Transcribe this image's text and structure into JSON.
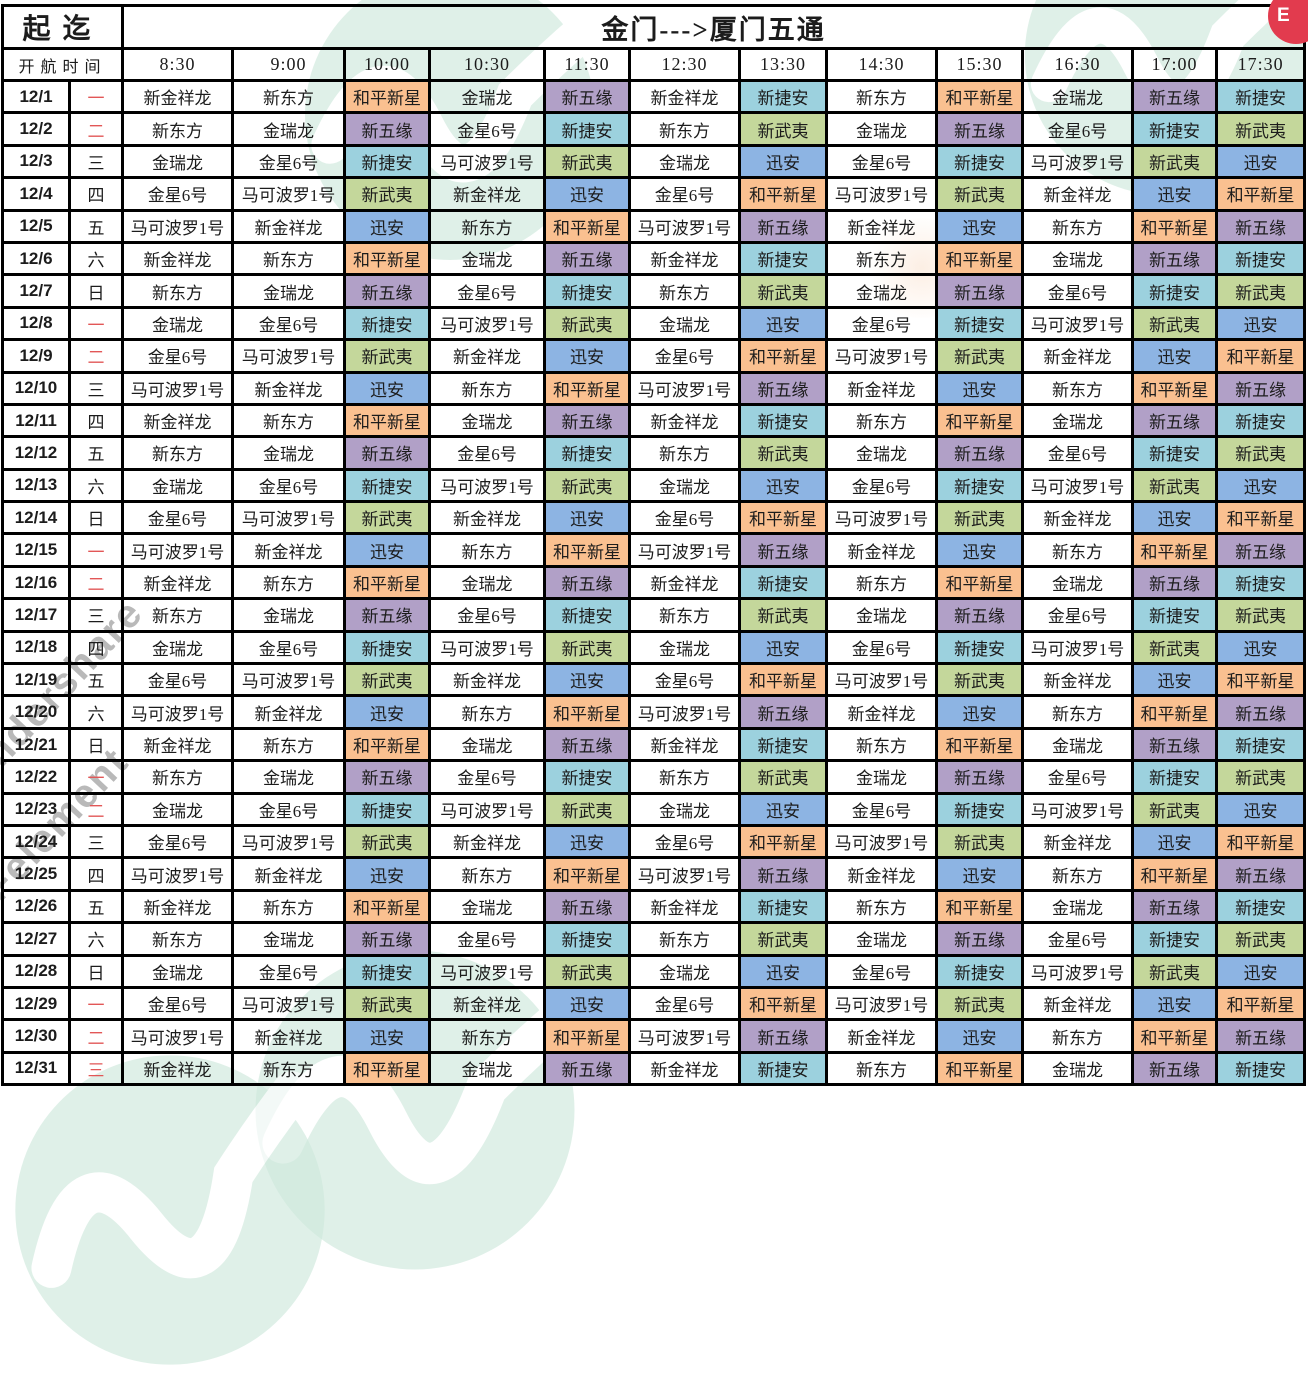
{
  "title": "金门--->厦门五通",
  "header": {
    "origin_label": "起迄",
    "departure_time_label": "开航时间"
  },
  "times": [
    "8:30",
    "9:00",
    "10:00",
    "10:30",
    "11:30",
    "12:30",
    "13:30",
    "14:30",
    "15:30",
    "16:30",
    "17:00",
    "17:30"
  ],
  "ship_colors": {
    "和平新星": "#FAC090",
    "新五缘": "#B1A0C7",
    "新捷安": "#9CD1DE",
    "新武夷": "#C4D79B",
    "迅安": "#8DB4E3"
  },
  "weekday_red_color": "#e25757",
  "rows": [
    {
      "date": "12/1",
      "day": "一",
      "day_red": true,
      "ships": [
        "新金祥龙",
        "新东方",
        "和平新星",
        "金瑞龙",
        "新五缘",
        "新金祥龙",
        "新捷安",
        "新东方",
        "和平新星",
        "金瑞龙",
        "新五缘",
        "新捷安"
      ]
    },
    {
      "date": "12/2",
      "day": "二",
      "day_red": true,
      "ships": [
        "新东方",
        "金瑞龙",
        "新五缘",
        "金星6号",
        "新捷安",
        "新东方",
        "新武夷",
        "金瑞龙",
        "新五缘",
        "金星6号",
        "新捷安",
        "新武夷"
      ]
    },
    {
      "date": "12/3",
      "day": "三",
      "day_red": false,
      "ships": [
        "金瑞龙",
        "金星6号",
        "新捷安",
        "马可波罗1号",
        "新武夷",
        "金瑞龙",
        "迅安",
        "金星6号",
        "新捷安",
        "马可波罗1号",
        "新武夷",
        "迅安"
      ]
    },
    {
      "date": "12/4",
      "day": "四",
      "day_red": false,
      "ships": [
        "金星6号",
        "马可波罗1号",
        "新武夷",
        "新金祥龙",
        "迅安",
        "金星6号",
        "和平新星",
        "马可波罗1号",
        "新武夷",
        "新金祥龙",
        "迅安",
        "和平新星"
      ]
    },
    {
      "date": "12/5",
      "day": "五",
      "day_red": false,
      "ships": [
        "马可波罗1号",
        "新金祥龙",
        "迅安",
        "新东方",
        "和平新星",
        "马可波罗1号",
        "新五缘",
        "新金祥龙",
        "迅安",
        "新东方",
        "和平新星",
        "新五缘"
      ]
    },
    {
      "date": "12/6",
      "day": "六",
      "day_red": false,
      "ships": [
        "新金祥龙",
        "新东方",
        "和平新星",
        "金瑞龙",
        "新五缘",
        "新金祥龙",
        "新捷安",
        "新东方",
        "和平新星",
        "金瑞龙",
        "新五缘",
        "新捷安"
      ]
    },
    {
      "date": "12/7",
      "day": "日",
      "day_red": false,
      "ships": [
        "新东方",
        "金瑞龙",
        "新五缘",
        "金星6号",
        "新捷安",
        "新东方",
        "新武夷",
        "金瑞龙",
        "新五缘",
        "金星6号",
        "新捷安",
        "新武夷"
      ]
    },
    {
      "date": "12/8",
      "day": "一",
      "day_red": true,
      "ships": [
        "金瑞龙",
        "金星6号",
        "新捷安",
        "马可波罗1号",
        "新武夷",
        "金瑞龙",
        "迅安",
        "金星6号",
        "新捷安",
        "马可波罗1号",
        "新武夷",
        "迅安"
      ]
    },
    {
      "date": "12/9",
      "day": "二",
      "day_red": true,
      "ships": [
        "金星6号",
        "马可波罗1号",
        "新武夷",
        "新金祥龙",
        "迅安",
        "金星6号",
        "和平新星",
        "马可波罗1号",
        "新武夷",
        "新金祥龙",
        "迅安",
        "和平新星"
      ]
    },
    {
      "date": "12/10",
      "day": "三",
      "day_red": false,
      "ships": [
        "马可波罗1号",
        "新金祥龙",
        "迅安",
        "新东方",
        "和平新星",
        "马可波罗1号",
        "新五缘",
        "新金祥龙",
        "迅安",
        "新东方",
        "和平新星",
        "新五缘"
      ]
    },
    {
      "date": "12/11",
      "day": "四",
      "day_red": false,
      "ships": [
        "新金祥龙",
        "新东方",
        "和平新星",
        "金瑞龙",
        "新五缘",
        "新金祥龙",
        "新捷安",
        "新东方",
        "和平新星",
        "金瑞龙",
        "新五缘",
        "新捷安"
      ]
    },
    {
      "date": "12/12",
      "day": "五",
      "day_red": false,
      "ships": [
        "新东方",
        "金瑞龙",
        "新五缘",
        "金星6号",
        "新捷安",
        "新东方",
        "新武夷",
        "金瑞龙",
        "新五缘",
        "金星6号",
        "新捷安",
        "新武夷"
      ]
    },
    {
      "date": "12/13",
      "day": "六",
      "day_red": false,
      "ships": [
        "金瑞龙",
        "金星6号",
        "新捷安",
        "马可波罗1号",
        "新武夷",
        "金瑞龙",
        "迅安",
        "金星6号",
        "新捷安",
        "马可波罗1号",
        "新武夷",
        "迅安"
      ]
    },
    {
      "date": "12/14",
      "day": "日",
      "day_red": false,
      "ships": [
        "金星6号",
        "马可波罗1号",
        "新武夷",
        "新金祥龙",
        "迅安",
        "金星6号",
        "和平新星",
        "马可波罗1号",
        "新武夷",
        "新金祥龙",
        "迅安",
        "和平新星"
      ]
    },
    {
      "date": "12/15",
      "day": "一",
      "day_red": true,
      "ships": [
        "马可波罗1号",
        "新金祥龙",
        "迅安",
        "新东方",
        "和平新星",
        "马可波罗1号",
        "新五缘",
        "新金祥龙",
        "迅安",
        "新东方",
        "和平新星",
        "新五缘"
      ]
    },
    {
      "date": "12/16",
      "day": "二",
      "day_red": true,
      "ships": [
        "新金祥龙",
        "新东方",
        "和平新星",
        "金瑞龙",
        "新五缘",
        "新金祥龙",
        "新捷安",
        "新东方",
        "和平新星",
        "金瑞龙",
        "新五缘",
        "新捷安"
      ]
    },
    {
      "date": "12/17",
      "day": "三",
      "day_red": false,
      "ships": [
        "新东方",
        "金瑞龙",
        "新五缘",
        "金星6号",
        "新捷安",
        "新东方",
        "新武夷",
        "金瑞龙",
        "新五缘",
        "金星6号",
        "新捷安",
        "新武夷"
      ]
    },
    {
      "date": "12/18",
      "day": "四",
      "day_red": false,
      "ships": [
        "金瑞龙",
        "金星6号",
        "新捷安",
        "马可波罗1号",
        "新武夷",
        "金瑞龙",
        "迅安",
        "金星6号",
        "新捷安",
        "马可波罗1号",
        "新武夷",
        "迅安"
      ]
    },
    {
      "date": "12/19",
      "day": "五",
      "day_red": false,
      "ships": [
        "金星6号",
        "马可波罗1号",
        "新武夷",
        "新金祥龙",
        "迅安",
        "金星6号",
        "和平新星",
        "马可波罗1号",
        "新武夷",
        "新金祥龙",
        "迅安",
        "和平新星"
      ]
    },
    {
      "date": "12/20",
      "day": "六",
      "day_red": false,
      "ships": [
        "马可波罗1号",
        "新金祥龙",
        "迅安",
        "新东方",
        "和平新星",
        "马可波罗1号",
        "新五缘",
        "新金祥龙",
        "迅安",
        "新东方",
        "和平新星",
        "新五缘"
      ]
    },
    {
      "date": "12/21",
      "day": "日",
      "day_red": false,
      "ships": [
        "新金祥龙",
        "新东方",
        "和平新星",
        "金瑞龙",
        "新五缘",
        "新金祥龙",
        "新捷安",
        "新东方",
        "和平新星",
        "金瑞龙",
        "新五缘",
        "新捷安"
      ]
    },
    {
      "date": "12/22",
      "day": "一",
      "day_red": true,
      "ships": [
        "新东方",
        "金瑞龙",
        "新五缘",
        "金星6号",
        "新捷安",
        "新东方",
        "新武夷",
        "金瑞龙",
        "新五缘",
        "金星6号",
        "新捷安",
        "新武夷"
      ]
    },
    {
      "date": "12/23",
      "day": "二",
      "day_red": true,
      "ships": [
        "金瑞龙",
        "金星6号",
        "新捷安",
        "马可波罗1号",
        "新武夷",
        "金瑞龙",
        "迅安",
        "金星6号",
        "新捷安",
        "马可波罗1号",
        "新武夷",
        "迅安"
      ]
    },
    {
      "date": "12/24",
      "day": "三",
      "day_red": false,
      "ships": [
        "金星6号",
        "马可波罗1号",
        "新武夷",
        "新金祥龙",
        "迅安",
        "金星6号",
        "和平新星",
        "马可波罗1号",
        "新武夷",
        "新金祥龙",
        "迅安",
        "和平新星"
      ]
    },
    {
      "date": "12/25",
      "day": "四",
      "day_red": false,
      "ships": [
        "马可波罗1号",
        "新金祥龙",
        "迅安",
        "新东方",
        "和平新星",
        "马可波罗1号",
        "新五缘",
        "新金祥龙",
        "迅安",
        "新东方",
        "和平新星",
        "新五缘"
      ]
    },
    {
      "date": "12/26",
      "day": "五",
      "day_red": false,
      "ships": [
        "新金祥龙",
        "新东方",
        "和平新星",
        "金瑞龙",
        "新五缘",
        "新金祥龙",
        "新捷安",
        "新东方",
        "和平新星",
        "金瑞龙",
        "新五缘",
        "新捷安"
      ]
    },
    {
      "date": "12/27",
      "day": "六",
      "day_red": false,
      "ships": [
        "新东方",
        "金瑞龙",
        "新五缘",
        "金星6号",
        "新捷安",
        "新东方",
        "新武夷",
        "金瑞龙",
        "新五缘",
        "金星6号",
        "新捷安",
        "新武夷"
      ]
    },
    {
      "date": "12/28",
      "day": "日",
      "day_red": false,
      "ships": [
        "金瑞龙",
        "金星6号",
        "新捷安",
        "马可波罗1号",
        "新武夷",
        "金瑞龙",
        "迅安",
        "金星6号",
        "新捷安",
        "马可波罗1号",
        "新武夷",
        "迅安"
      ]
    },
    {
      "date": "12/29",
      "day": "一",
      "day_red": true,
      "ships": [
        "金星6号",
        "马可波罗1号",
        "新武夷",
        "新金祥龙",
        "迅安",
        "金星6号",
        "和平新星",
        "马可波罗1号",
        "新武夷",
        "新金祥龙",
        "迅安",
        "和平新星"
      ]
    },
    {
      "date": "12/30",
      "day": "二",
      "day_red": true,
      "ships": [
        "马可波罗1号",
        "新金祥龙",
        "迅安",
        "新东方",
        "和平新星",
        "马可波罗1号",
        "新五缘",
        "新金祥龙",
        "迅安",
        "新东方",
        "和平新星",
        "新五缘"
      ]
    },
    {
      "date": "12/31",
      "day": "三",
      "day_red": true,
      "ships": [
        "新金祥龙",
        "新东方",
        "和平新星",
        "金瑞龙",
        "新五缘",
        "新金祥龙",
        "新捷安",
        "新东方",
        "和平新星",
        "金瑞龙",
        "新五缘",
        "新捷安"
      ]
    }
  ],
  "watermark": {
    "text_line1": "ndershare",
    "text_line2": "DFelement",
    "script_text": "om",
    "logo_color": "#cfe9dd"
  },
  "corner_badge": "E"
}
